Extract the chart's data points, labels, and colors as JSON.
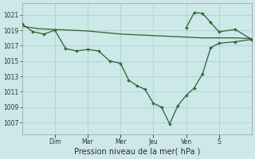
{
  "xlabel": "Pression niveau de la mer( hPa )",
  "background_color": "#cce8e8",
  "grid_color": "#aacccc",
  "line_color": "#2d5e2d",
  "ylim": [
    1005.5,
    1022.5
  ],
  "yticks": [
    1007,
    1009,
    1011,
    1013,
    1015,
    1017,
    1019,
    1021
  ],
  "day_labels": [
    "Dim",
    "Mar",
    "Mer",
    "Jeu",
    "Ven",
    "S"
  ],
  "day_positions": [
    1,
    2,
    3,
    4,
    5,
    6
  ],
  "xlim": [
    0,
    7
  ],
  "trend_x": [
    0,
    0.5,
    1.0,
    1.5,
    2.0,
    2.5,
    3.0,
    3.5,
    4.0,
    4.5,
    5.0,
    5.5,
    6.0,
    6.5,
    7.0
  ],
  "trend_y": [
    1019.5,
    1019.2,
    1019.1,
    1019.0,
    1018.9,
    1018.7,
    1018.5,
    1018.4,
    1018.3,
    1018.2,
    1018.1,
    1018.0,
    1018.0,
    1018.0,
    1017.9
  ],
  "main_x": [
    0,
    0.33,
    0.67,
    1.0,
    1.33,
    1.67,
    2.0,
    2.33,
    2.67,
    3.0,
    3.25,
    3.5,
    3.75,
    4.0,
    4.25,
    4.5,
    4.75,
    5.0,
    5.25,
    5.5,
    5.75,
    6.0,
    6.5,
    7.0
  ],
  "main_y": [
    1019.8,
    1018.8,
    1018.5,
    1019.0,
    1016.6,
    1016.3,
    1016.5,
    1016.3,
    1015.0,
    1014.7,
    1012.5,
    1011.8,
    1011.3,
    1009.5,
    1009.0,
    1006.8,
    1009.2,
    1010.5,
    1011.5,
    1013.3,
    1016.7,
    1017.3,
    1017.5,
    1017.8
  ],
  "peak_x": [
    5.0,
    5.25,
    5.5,
    5.75,
    6.0,
    6.5,
    7.0
  ],
  "peak_y": [
    1019.3,
    1021.3,
    1021.2,
    1020.0,
    1018.8,
    1019.1,
    1017.8
  ]
}
